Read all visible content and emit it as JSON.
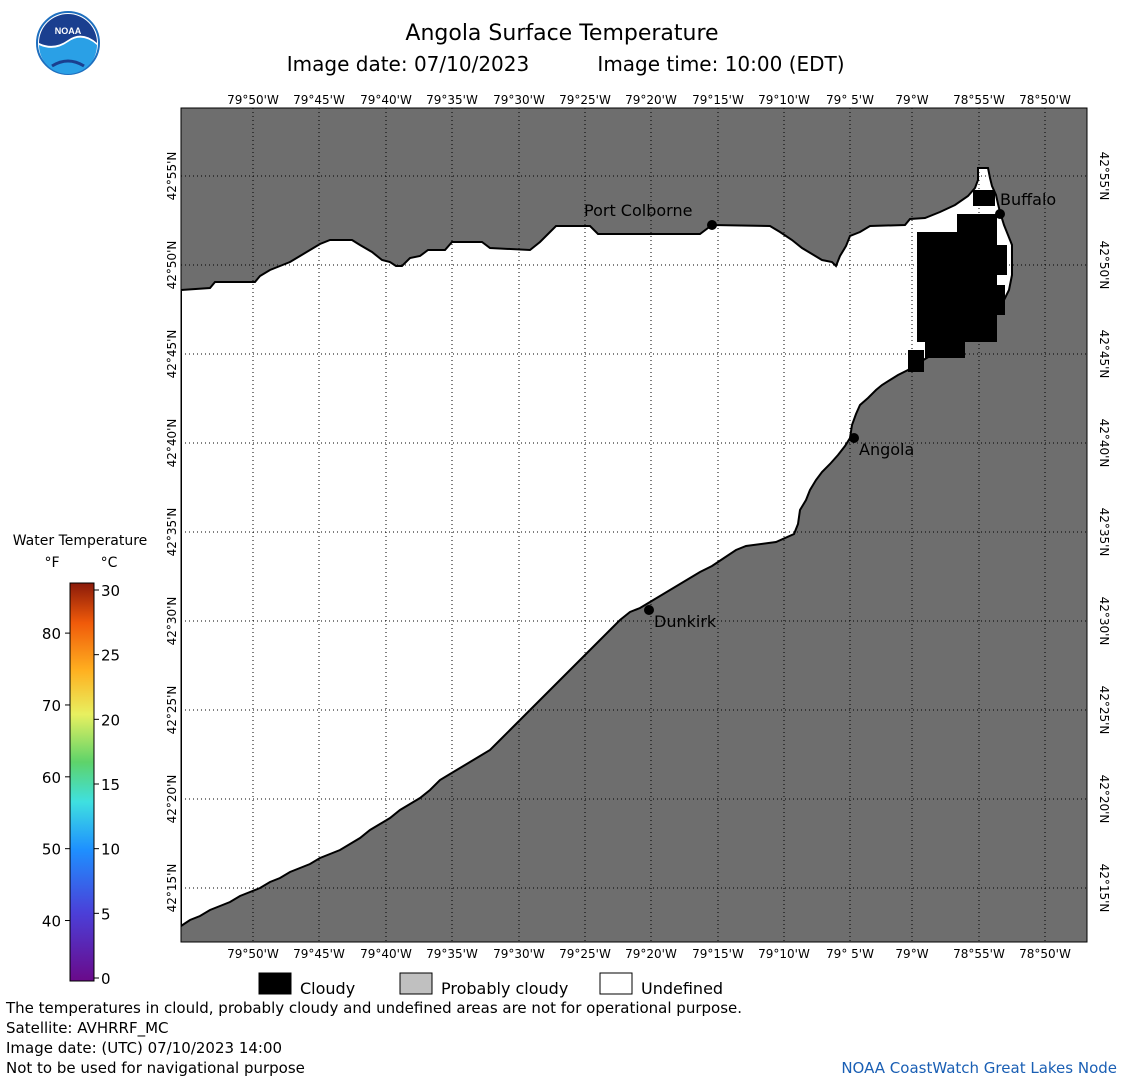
{
  "header": {
    "title": "Angola Surface Temperature",
    "image_date_label": "Image date: 07/10/2023",
    "image_time_label": "Image time: 10:00 (EDT)",
    "logo_text": "NOAA"
  },
  "map": {
    "lon_labels": [
      "79°50'W",
      "79°45'W",
      "79°40'W",
      "79°35'W",
      "79°30'W",
      "79°25'W",
      "79°20'W",
      "79°15'W",
      "79°10'W",
      "79° 5'W",
      "79°W",
      "78°55'W",
      "78°50'W"
    ],
    "lat_labels": [
      "42°55'N",
      "42°50'N",
      "42°45'N",
      "42°40'N",
      "42°35'N",
      "42°30'N",
      "42°25'N",
      "42°20'N",
      "42°15'N"
    ],
    "cities": [
      {
        "name": "Port Colborne"
      },
      {
        "name": "Buffalo"
      },
      {
        "name": "Angola"
      },
      {
        "name": "Dunkirk"
      }
    ],
    "colors": {
      "land": "#6e6e6e",
      "cloudy": "#000000",
      "probably_cloudy": "#c0c0c0",
      "undefined": "#ffffff"
    }
  },
  "colorbar": {
    "title": "Water Temperature",
    "unit_f": "°F",
    "unit_c": "°C",
    "f_ticks": [
      "80",
      "70",
      "60",
      "50",
      "40"
    ],
    "c_ticks": [
      "30",
      "25",
      "20",
      "15",
      "10",
      "5",
      "0"
    ]
  },
  "legend": {
    "items": [
      {
        "label": "Cloudy",
        "color": "#000000"
      },
      {
        "label": "Probably cloudy",
        "color": "#c0c0c0"
      },
      {
        "label": "Undefined",
        "color": "#ffffff"
      }
    ]
  },
  "footer": {
    "disclaimer": "The temperatures in clould, probably cloudy and undefined areas are not for operational purpose.",
    "satellite": "Satellite: AVHRRF_MC",
    "utc_date": "Image date: (UTC) 07/10/2023  14:00",
    "navigation": "Not to be used for navigational purpose",
    "credit": "NOAA CoastWatch Great Lakes Node"
  }
}
